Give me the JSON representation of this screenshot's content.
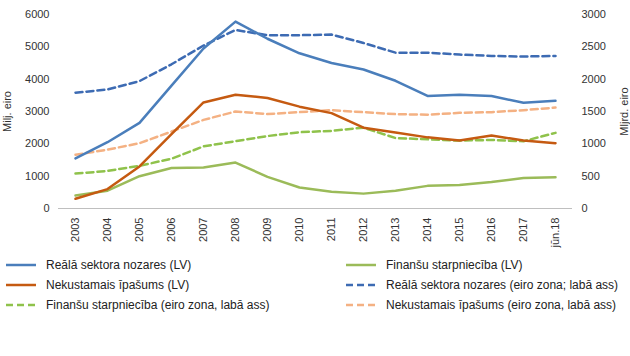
{
  "chart_data": {
    "type": "line",
    "ylabel": "Milj. eiro",
    "y2label": "Mljrd. eiro",
    "categories": [
      "2003",
      "2004",
      "2005",
      "2006",
      "2007",
      "2008",
      "2009",
      "2010",
      "2011",
      "2012",
      "2013",
      "2014",
      "2015",
      "2016",
      "2017",
      "jūn.18"
    ],
    "ylim": [
      0,
      6000
    ],
    "yticks": [
      0,
      1000,
      2000,
      3000,
      4000,
      5000,
      6000
    ],
    "y2lim": [
      0,
      3000
    ],
    "y2ticks": [
      0,
      500,
      1000,
      1500,
      2000,
      2500,
      3000
    ],
    "grid": false,
    "legend": "bottom",
    "series": [
      {
        "name": "Reālā sektora nozares (LV)",
        "color": "#4a7ebb",
        "line_style": "solid",
        "values": [
          1550,
          2050,
          2650,
          3800,
          4950,
          5780,
          5250,
          4800,
          4500,
          4300,
          3950,
          3480,
          3520,
          3480,
          3270,
          3330
        ]
      },
      {
        "name": "Finanšu starpniecība (LV)",
        "color": "#9bbb59",
        "line_style": "solid",
        "values": [
          400,
          550,
          1000,
          1250,
          1270,
          1420,
          980,
          650,
          520,
          460,
          550,
          700,
          730,
          820,
          940,
          970
        ]
      },
      {
        "name": "Nekustamais īpašums (LV)",
        "color": "#c55a11",
        "line_style": "solid",
        "values": [
          300,
          600,
          1300,
          2300,
          3280,
          3520,
          3420,
          3150,
          2950,
          2500,
          2350,
          2200,
          2100,
          2260,
          2100,
          2020
        ]
      },
      {
        "name": "Reālā sektora nozares (eiro zona; labā ass)",
        "color": "#3d6bb3",
        "line_style": "dashed",
        "axis": "y2",
        "values": [
          1790,
          1840,
          1970,
          2230,
          2520,
          2760,
          2680,
          2680,
          2690,
          2560,
          2410,
          2410,
          2380,
          2360,
          2350,
          2360
        ]
      },
      {
        "name": "Finanšu starpniecība (eiro zona, labā ass)",
        "color": "#8fc24b",
        "line_style": "dashed",
        "axis": "y2",
        "values": [
          540,
          580,
          660,
          770,
          960,
          1040,
          1120,
          1180,
          1200,
          1250,
          1090,
          1070,
          1050,
          1060,
          1040,
          1170
        ]
      },
      {
        "name": "Nekustamais īpašums (eiro zona, labā ass)",
        "color": "#f4b183",
        "line_style": "dashed",
        "axis": "y2",
        "values": [
          830,
          910,
          1010,
          1190,
          1370,
          1500,
          1460,
          1490,
          1520,
          1490,
          1460,
          1450,
          1480,
          1490,
          1520,
          1560
        ]
      }
    ]
  }
}
